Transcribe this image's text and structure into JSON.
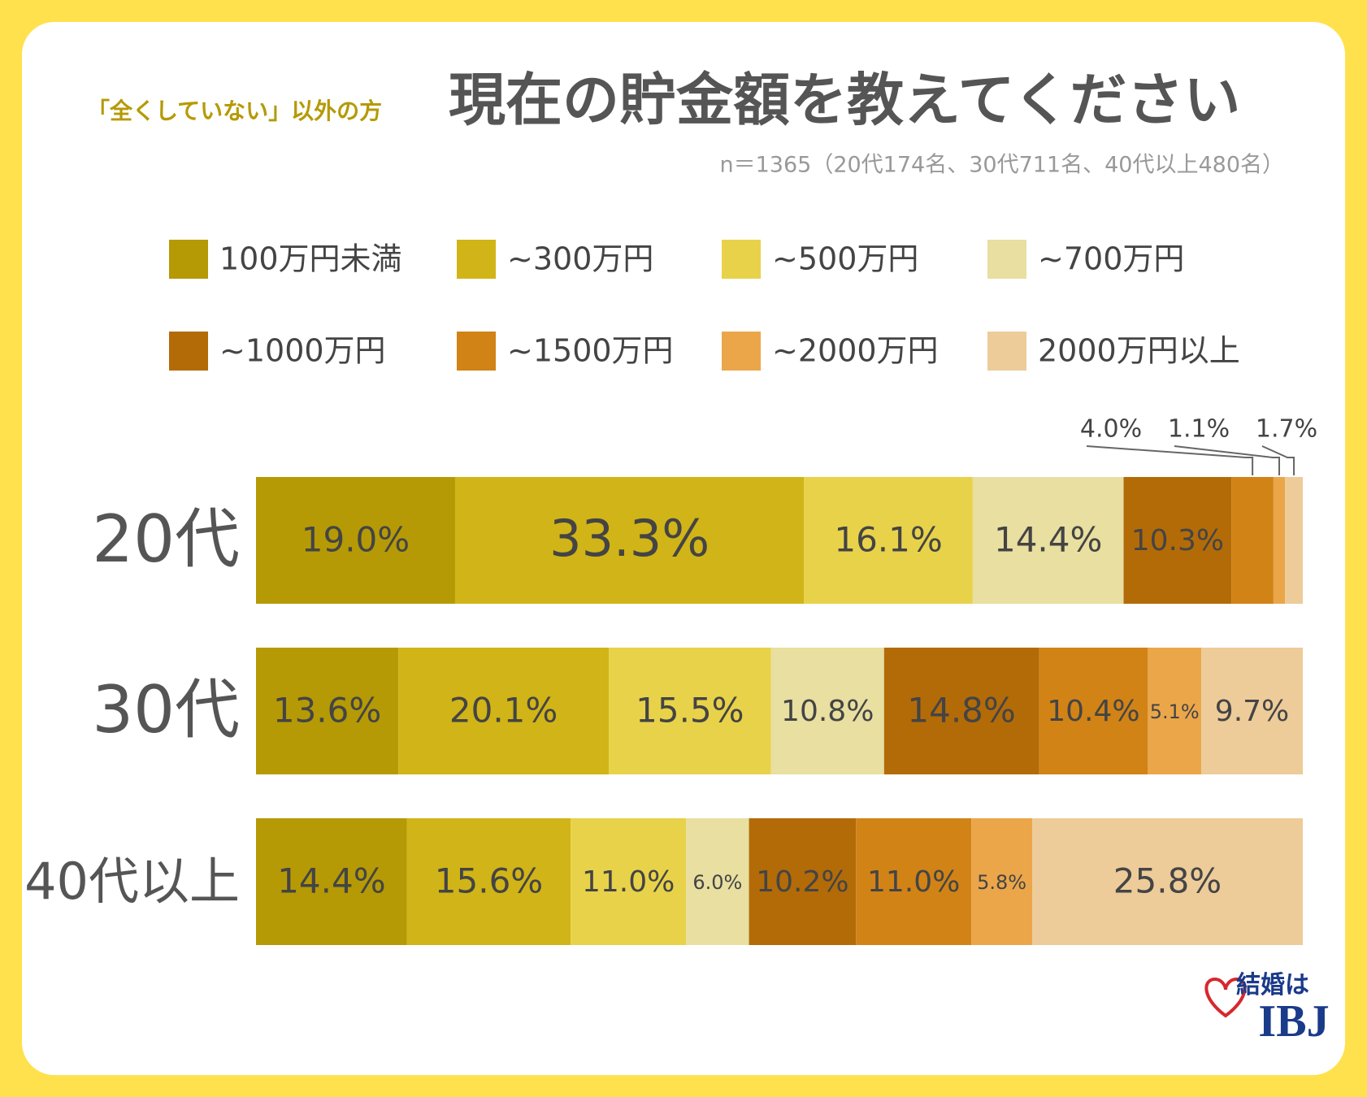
{
  "chart_data": {
    "type": "stacked-bar",
    "prefix": "「全くしていない」以外の方",
    "title": "現在の貯金額を教えてください",
    "subtitle": "n＝1365（20代174名、30代711名、40代以上480名）",
    "categories": [
      "20代",
      "30代",
      "40代以上"
    ],
    "series": [
      {
        "name": "100万円未満",
        "color": "#B59A05",
        "values": [
          19.0,
          13.6,
          14.4
        ],
        "value_labels": [
          "19.0%",
          "13.6%",
          "14.4%"
        ]
      },
      {
        "name": "~300万円",
        "color": "#D1B417",
        "values": [
          33.3,
          20.1,
          15.6
        ],
        "value_labels": [
          "33.3%",
          "20.1%",
          "15.6%"
        ]
      },
      {
        "name": "~500万円",
        "color": "#E8D24A",
        "values": [
          16.1,
          15.5,
          11.0
        ],
        "value_labels": [
          "16.1%",
          "15.5%",
          "11.0%"
        ]
      },
      {
        "name": "~700万円",
        "color": "#E8DFA0",
        "values": [
          14.4,
          10.8,
          6.0
        ],
        "value_labels": [
          "14.4%",
          "10.8%",
          "6.0%"
        ]
      },
      {
        "name": "~1000万円",
        "color": "#B36B08",
        "values": [
          10.3,
          14.8,
          10.2
        ],
        "value_labels": [
          "10.3%",
          "14.8%",
          "10.2%"
        ]
      },
      {
        "name": "~1500万円",
        "color": "#D18316",
        "values": [
          4.0,
          10.4,
          11.0
        ],
        "value_labels": [
          "4.0%",
          "10.4%",
          "11.0%"
        ]
      },
      {
        "name": "~2000万円",
        "color": "#EBA64A",
        "values": [
          1.1,
          5.1,
          5.8
        ],
        "value_labels": [
          "1.1%",
          "5.1%",
          "5.8%"
        ]
      },
      {
        "name": "2000万円以上",
        "color": "#EDCC9A",
        "values": [
          1.7,
          9.7,
          25.8
        ],
        "value_labels": [
          "1.7%",
          "9.7%",
          "25.8%"
        ]
      }
    ]
  },
  "logo": {
    "tagline": "結婚は",
    "brand": "IBJ"
  }
}
